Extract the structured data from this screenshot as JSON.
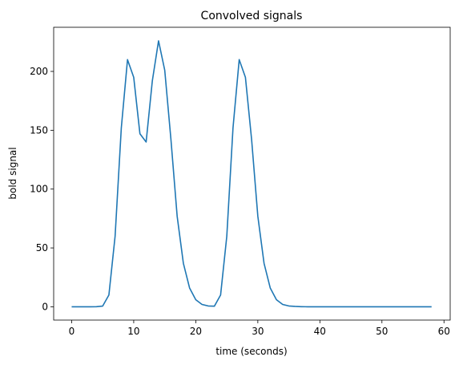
{
  "chart_data": {
    "type": "line",
    "title": "Convolved signals",
    "xlabel": "time (seconds)",
    "ylabel": "bold signal",
    "xlim": [
      -2.9,
      61.0
    ],
    "ylim": [
      -11.3,
      237.5
    ],
    "xticks": [
      0,
      10,
      20,
      30,
      40,
      50,
      60
    ],
    "yticks": [
      0,
      50,
      100,
      150,
      200
    ],
    "grid": false,
    "series": [
      {
        "color": "#1f77b4",
        "x": [
          0,
          1,
          2,
          3,
          4,
          5,
          6,
          7,
          8,
          9,
          10,
          11,
          12,
          13,
          14,
          15,
          16,
          17,
          18,
          19,
          20,
          21,
          22,
          23,
          24,
          25,
          26,
          27,
          28,
          29,
          30,
          31,
          32,
          33,
          34,
          35,
          36,
          37,
          38,
          39,
          40,
          41,
          42,
          43,
          44,
          45,
          46,
          47,
          48,
          49,
          50,
          51,
          52,
          53,
          54,
          55,
          56,
          57,
          58
        ],
        "y": [
          0,
          0,
          0,
          0,
          0.1,
          0.6,
          10,
          60,
          152,
          210,
          195,
          147,
          140,
          192,
          226,
          201,
          142,
          77,
          37,
          16,
          6,
          2,
          0.7,
          0.5,
          10,
          60,
          152,
          210,
          195,
          142,
          77,
          37,
          16,
          6,
          2,
          0.7,
          0.3,
          0.1,
          0,
          0,
          0,
          0,
          0,
          0,
          0,
          0,
          0,
          0,
          0,
          0,
          0,
          0,
          0,
          0,
          0,
          0,
          0,
          0,
          0
        ]
      }
    ]
  }
}
